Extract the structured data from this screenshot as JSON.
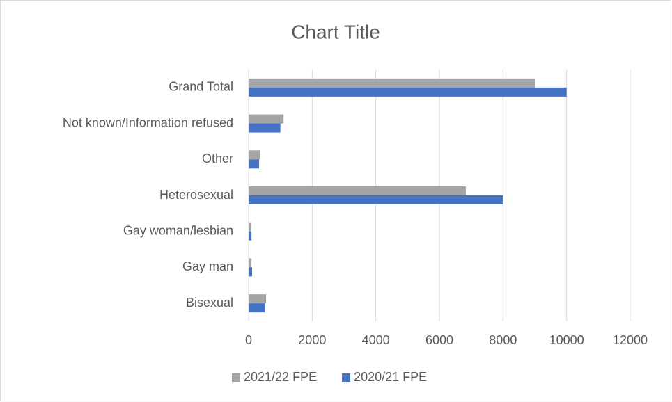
{
  "chart_data": {
    "type": "hbar",
    "title": "Chart Title",
    "categories": [
      "Bisexual",
      "Gay man",
      "Gay woman/lesbian",
      "Heterosexual",
      "Other",
      "Not known/Information refused",
      "Grand Total"
    ],
    "series": [
      {
        "name": "2021/22 FPE",
        "color": "#a5a5a5",
        "values": [
          550,
          90,
          90,
          6830,
          350,
          1100,
          9000
        ]
      },
      {
        "name": "2020/21 FPE",
        "color": "#4472c4",
        "values": [
          520,
          110,
          90,
          8000,
          330,
          1000,
          10000
        ]
      }
    ],
    "xlim": [
      0,
      12000
    ],
    "xticks": [
      0,
      2000,
      4000,
      6000,
      8000,
      10000,
      12000
    ],
    "grid": true,
    "legend": "bottom"
  }
}
